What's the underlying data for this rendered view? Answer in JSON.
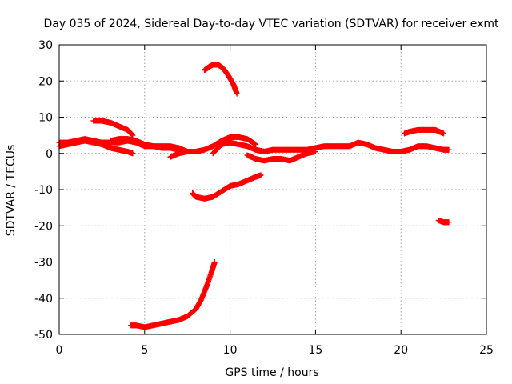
{
  "chart_data": {
    "type": "scatter",
    "title": "Day 035 of 2024, Sidereal Day-to-day VTEC variation (SDTVAR) for receiver exmt",
    "xlabel": "GPS time / hours",
    "ylabel": "SDTVAR / TECUs",
    "xlim": [
      0,
      25
    ],
    "ylim": [
      -50,
      30
    ],
    "xticks": [
      0,
      5,
      10,
      15,
      20,
      25
    ],
    "yticks": [
      -50,
      -40,
      -30,
      -20,
      -10,
      0,
      10,
      20,
      30
    ],
    "grid": true,
    "marker": "+",
    "color": "#ff0000",
    "series": [
      {
        "name": "arc-main-1",
        "x": [
          0,
          0.5,
          1,
          1.5,
          2,
          2.5,
          3,
          3.5,
          4,
          4.5,
          5,
          5.5,
          6,
          6.5,
          7,
          7.5,
          8,
          8.5,
          9,
          9.5,
          10,
          10.5,
          11,
          11.5
        ],
        "y": [
          3,
          3,
          3.5,
          4,
          3.5,
          3,
          3,
          3,
          3.5,
          3,
          2,
          2,
          2,
          2,
          1.5,
          0.5,
          0.5,
          1,
          2,
          3.5,
          4.5,
          4.5,
          4,
          2.5
        ]
      },
      {
        "name": "arc-main-2",
        "x": [
          11.5,
          12,
          12.5,
          13,
          13.5,
          14,
          14.5,
          15,
          15.5,
          16,
          16.5,
          17,
          17.5,
          18,
          18.5,
          19,
          19.5,
          20,
          20.5,
          21,
          21.5,
          22,
          22.5,
          22.8
        ],
        "y": [
          1,
          0.5,
          1,
          1,
          1,
          1,
          1,
          1.5,
          2,
          2,
          2,
          2,
          3,
          2.5,
          1.5,
          1,
          0.5,
          0.5,
          1,
          2,
          2,
          1.5,
          1,
          1
        ]
      },
      {
        "name": "arc-low-1",
        "x": [
          0,
          0.5,
          1,
          1.5,
          2,
          2.5,
          3,
          3.5,
          4,
          4.3
        ],
        "y": [
          2,
          2.5,
          3,
          3.5,
          3,
          2.5,
          1.5,
          1,
          0.5,
          0
        ]
      },
      {
        "name": "arc-high-start",
        "x": [
          2,
          2.5,
          3,
          3.5,
          4,
          4.3
        ],
        "y": [
          9,
          9,
          8.5,
          7.5,
          6.5,
          5
        ]
      },
      {
        "name": "arc-pos-1",
        "x": [
          3,
          3.5,
          4,
          4.5,
          5,
          5.5,
          6,
          6.5,
          7
        ],
        "y": [
          3.5,
          4,
          4,
          3.5,
          2.5,
          2,
          1.5,
          1.5,
          1
        ]
      },
      {
        "name": "arc-mid-hump",
        "x": [
          9,
          9.5,
          10,
          10.5,
          11,
          11.5,
          12
        ],
        "y": [
          0,
          2.5,
          3,
          2.5,
          2,
          1,
          0.5
        ]
      },
      {
        "name": "arc-mid-dip",
        "x": [
          11,
          11.5,
          12,
          12.5,
          13,
          13.5
        ],
        "y": [
          -0.5,
          -1.5,
          -2,
          -1.5,
          -1.5,
          -2
        ]
      },
      {
        "name": "arc-start-dip",
        "x": [
          6.5,
          7,
          7.5
        ],
        "y": [
          -1,
          0,
          0.5
        ]
      },
      {
        "name": "arc-post-dip",
        "x": [
          13.5,
          14,
          14.5,
          15
        ],
        "y": [
          -2,
          -1,
          0,
          0.5
        ]
      },
      {
        "name": "arc-peak-24",
        "x": [
          8.5,
          8.8,
          9,
          9.3,
          9.6,
          9.9,
          10.2,
          10.4
        ],
        "y": [
          23,
          24,
          24.5,
          24.5,
          23.5,
          21.5,
          19,
          16.5
        ]
      },
      {
        "name": "arc-high-late",
        "x": [
          20.2,
          20.5,
          21,
          21.5,
          22,
          22.5
        ],
        "y": [
          5.5,
          6,
          6.5,
          6.5,
          6.5,
          5.5
        ]
      },
      {
        "name": "arc-neg-12",
        "x": [
          7.8,
          8,
          8.5,
          9,
          9.5,
          10,
          10.5,
          11,
          11.5,
          11.8
        ],
        "y": [
          -11,
          -12,
          -12.5,
          -12,
          -10.5,
          -9,
          -8.5,
          -7.5,
          -6.5,
          -6
        ]
      },
      {
        "name": "arc-neg-19",
        "x": [
          22.2,
          22.5,
          22.8
        ],
        "y": [
          -18.5,
          -19,
          -19
        ]
      },
      {
        "name": "arc-neg-48",
        "x": [
          4.2,
          4.5,
          5,
          5.5,
          6,
          6.5,
          7,
          7.5,
          8,
          8.3,
          8.6,
          8.9,
          9.1
        ],
        "y": [
          -47.5,
          -47.5,
          -48,
          -47.5,
          -47,
          -46.5,
          -46,
          -45,
          -43,
          -40.5,
          -37,
          -33,
          -30
        ]
      }
    ]
  }
}
